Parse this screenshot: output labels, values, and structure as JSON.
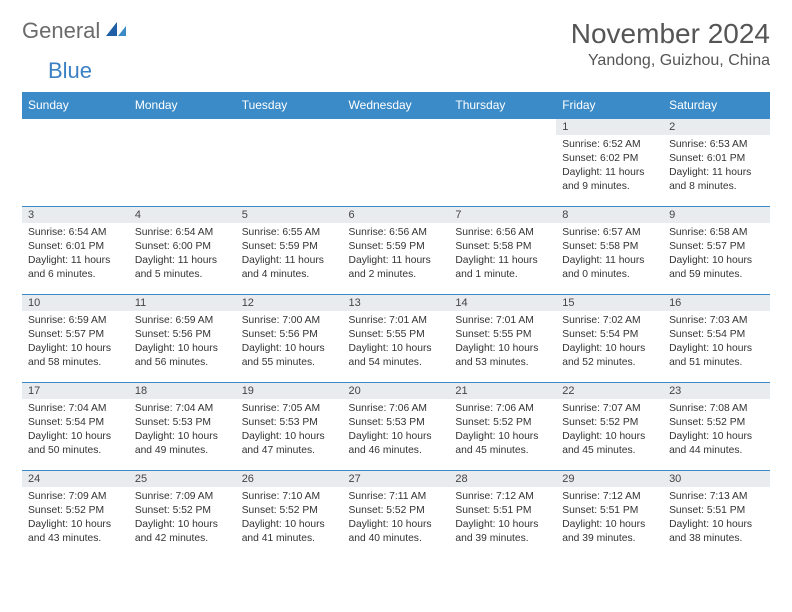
{
  "brand": {
    "part1": "General",
    "part2": "Blue"
  },
  "title": "November 2024",
  "location": "Yandong, Guizhou, China",
  "colors": {
    "header_bg": "#3b8bc9",
    "daynum_bg": "#e8ecef",
    "border": "#3b8bc9",
    "brand_gray": "#6b6b6b",
    "brand_blue": "#3b7fc4",
    "text": "#333333"
  },
  "day_names": [
    "Sunday",
    "Monday",
    "Tuesday",
    "Wednesday",
    "Thursday",
    "Friday",
    "Saturday"
  ],
  "weeks": [
    [
      {
        "empty": true
      },
      {
        "empty": true
      },
      {
        "empty": true
      },
      {
        "empty": true
      },
      {
        "empty": true
      },
      {
        "n": "1",
        "sunrise": "Sunrise: 6:52 AM",
        "sunset": "Sunset: 6:02 PM",
        "day1": "Daylight: 11 hours",
        "day2": "and 9 minutes."
      },
      {
        "n": "2",
        "sunrise": "Sunrise: 6:53 AM",
        "sunset": "Sunset: 6:01 PM",
        "day1": "Daylight: 11 hours",
        "day2": "and 8 minutes."
      }
    ],
    [
      {
        "n": "3",
        "sunrise": "Sunrise: 6:54 AM",
        "sunset": "Sunset: 6:01 PM",
        "day1": "Daylight: 11 hours",
        "day2": "and 6 minutes."
      },
      {
        "n": "4",
        "sunrise": "Sunrise: 6:54 AM",
        "sunset": "Sunset: 6:00 PM",
        "day1": "Daylight: 11 hours",
        "day2": "and 5 minutes."
      },
      {
        "n": "5",
        "sunrise": "Sunrise: 6:55 AM",
        "sunset": "Sunset: 5:59 PM",
        "day1": "Daylight: 11 hours",
        "day2": "and 4 minutes."
      },
      {
        "n": "6",
        "sunrise": "Sunrise: 6:56 AM",
        "sunset": "Sunset: 5:59 PM",
        "day1": "Daylight: 11 hours",
        "day2": "and 2 minutes."
      },
      {
        "n": "7",
        "sunrise": "Sunrise: 6:56 AM",
        "sunset": "Sunset: 5:58 PM",
        "day1": "Daylight: 11 hours",
        "day2": "and 1 minute."
      },
      {
        "n": "8",
        "sunrise": "Sunrise: 6:57 AM",
        "sunset": "Sunset: 5:58 PM",
        "day1": "Daylight: 11 hours",
        "day2": "and 0 minutes."
      },
      {
        "n": "9",
        "sunrise": "Sunrise: 6:58 AM",
        "sunset": "Sunset: 5:57 PM",
        "day1": "Daylight: 10 hours",
        "day2": "and 59 minutes."
      }
    ],
    [
      {
        "n": "10",
        "sunrise": "Sunrise: 6:59 AM",
        "sunset": "Sunset: 5:57 PM",
        "day1": "Daylight: 10 hours",
        "day2": "and 58 minutes."
      },
      {
        "n": "11",
        "sunrise": "Sunrise: 6:59 AM",
        "sunset": "Sunset: 5:56 PM",
        "day1": "Daylight: 10 hours",
        "day2": "and 56 minutes."
      },
      {
        "n": "12",
        "sunrise": "Sunrise: 7:00 AM",
        "sunset": "Sunset: 5:56 PM",
        "day1": "Daylight: 10 hours",
        "day2": "and 55 minutes."
      },
      {
        "n": "13",
        "sunrise": "Sunrise: 7:01 AM",
        "sunset": "Sunset: 5:55 PM",
        "day1": "Daylight: 10 hours",
        "day2": "and 54 minutes."
      },
      {
        "n": "14",
        "sunrise": "Sunrise: 7:01 AM",
        "sunset": "Sunset: 5:55 PM",
        "day1": "Daylight: 10 hours",
        "day2": "and 53 minutes."
      },
      {
        "n": "15",
        "sunrise": "Sunrise: 7:02 AM",
        "sunset": "Sunset: 5:54 PM",
        "day1": "Daylight: 10 hours",
        "day2": "and 52 minutes."
      },
      {
        "n": "16",
        "sunrise": "Sunrise: 7:03 AM",
        "sunset": "Sunset: 5:54 PM",
        "day1": "Daylight: 10 hours",
        "day2": "and 51 minutes."
      }
    ],
    [
      {
        "n": "17",
        "sunrise": "Sunrise: 7:04 AM",
        "sunset": "Sunset: 5:54 PM",
        "day1": "Daylight: 10 hours",
        "day2": "and 50 minutes."
      },
      {
        "n": "18",
        "sunrise": "Sunrise: 7:04 AM",
        "sunset": "Sunset: 5:53 PM",
        "day1": "Daylight: 10 hours",
        "day2": "and 49 minutes."
      },
      {
        "n": "19",
        "sunrise": "Sunrise: 7:05 AM",
        "sunset": "Sunset: 5:53 PM",
        "day1": "Daylight: 10 hours",
        "day2": "and 47 minutes."
      },
      {
        "n": "20",
        "sunrise": "Sunrise: 7:06 AM",
        "sunset": "Sunset: 5:53 PM",
        "day1": "Daylight: 10 hours",
        "day2": "and 46 minutes."
      },
      {
        "n": "21",
        "sunrise": "Sunrise: 7:06 AM",
        "sunset": "Sunset: 5:52 PM",
        "day1": "Daylight: 10 hours",
        "day2": "and 45 minutes."
      },
      {
        "n": "22",
        "sunrise": "Sunrise: 7:07 AM",
        "sunset": "Sunset: 5:52 PM",
        "day1": "Daylight: 10 hours",
        "day2": "and 45 minutes."
      },
      {
        "n": "23",
        "sunrise": "Sunrise: 7:08 AM",
        "sunset": "Sunset: 5:52 PM",
        "day1": "Daylight: 10 hours",
        "day2": "and 44 minutes."
      }
    ],
    [
      {
        "n": "24",
        "sunrise": "Sunrise: 7:09 AM",
        "sunset": "Sunset: 5:52 PM",
        "day1": "Daylight: 10 hours",
        "day2": "and 43 minutes."
      },
      {
        "n": "25",
        "sunrise": "Sunrise: 7:09 AM",
        "sunset": "Sunset: 5:52 PM",
        "day1": "Daylight: 10 hours",
        "day2": "and 42 minutes."
      },
      {
        "n": "26",
        "sunrise": "Sunrise: 7:10 AM",
        "sunset": "Sunset: 5:52 PM",
        "day1": "Daylight: 10 hours",
        "day2": "and 41 minutes."
      },
      {
        "n": "27",
        "sunrise": "Sunrise: 7:11 AM",
        "sunset": "Sunset: 5:52 PM",
        "day1": "Daylight: 10 hours",
        "day2": "and 40 minutes."
      },
      {
        "n": "28",
        "sunrise": "Sunrise: 7:12 AM",
        "sunset": "Sunset: 5:51 PM",
        "day1": "Daylight: 10 hours",
        "day2": "and 39 minutes."
      },
      {
        "n": "29",
        "sunrise": "Sunrise: 7:12 AM",
        "sunset": "Sunset: 5:51 PM",
        "day1": "Daylight: 10 hours",
        "day2": "and 39 minutes."
      },
      {
        "n": "30",
        "sunrise": "Sunrise: 7:13 AM",
        "sunset": "Sunset: 5:51 PM",
        "day1": "Daylight: 10 hours",
        "day2": "and 38 minutes."
      }
    ]
  ]
}
